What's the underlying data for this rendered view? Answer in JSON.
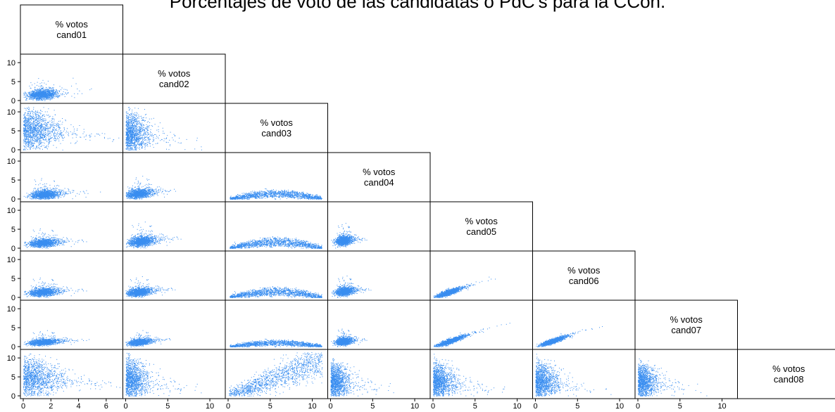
{
  "title": "Porcentajes de voto de las candidatas o PdC's para la CCon.",
  "point_color": "#3a8ef0",
  "chart_data": {
    "type": "scatter",
    "kind": "scatterplot-matrix (lower triangle)",
    "variables": [
      {
        "id": "cand01",
        "label_top": "% votos",
        "label_bottom": "cand01",
        "range": [
          0,
          7
        ],
        "ticks": [
          0,
          2,
          4,
          6
        ]
      },
      {
        "id": "cand02",
        "label_top": "% votos",
        "label_bottom": "cand02",
        "range": [
          0,
          11.5
        ],
        "ticks": [
          0,
          5,
          10
        ]
      },
      {
        "id": "cand03",
        "label_top": "% votos",
        "label_bottom": "cand03",
        "range": [
          0,
          11.5
        ],
        "ticks": [
          0,
          5,
          10
        ]
      },
      {
        "id": "cand04",
        "label_top": "% votos",
        "label_bottom": "cand04",
        "range": [
          0,
          11.5
        ],
        "ticks": [
          0,
          5,
          10
        ]
      },
      {
        "id": "cand05",
        "label_top": "% votos",
        "label_bottom": "cand05",
        "range": [
          0,
          11.5
        ],
        "ticks": [
          0,
          5,
          10
        ]
      },
      {
        "id": "cand06",
        "label_top": "% votos",
        "label_bottom": "cand06",
        "range": [
          0,
          11.5
        ],
        "ticks": [
          0,
          5,
          10
        ]
      },
      {
        "id": "cand07",
        "label_top": "% votos",
        "label_bottom": "cand07",
        "range": [
          0,
          11.5
        ],
        "ticks": [
          0,
          5,
          10
        ]
      },
      {
        "id": "cand08",
        "label_top": "% votos",
        "label_bottom": "cand08",
        "range": [
          0,
          11.5
        ],
        "ticks": [
          0,
          5,
          10
        ]
      }
    ],
    "y_axis_ticks": [
      0,
      5,
      10
    ],
    "x_tick_labels_bottom": [
      "0",
      "2",
      "4",
      "6",
      "0",
      "5",
      "10",
      "0",
      "5",
      "10",
      "0",
      "5",
      "10",
      "0",
      "5",
      "10",
      "0",
      "5",
      "10",
      "0",
      "5",
      "10"
    ],
    "panels": [
      {
        "x": "cand01",
        "y": "cand02",
        "shape": "cluster",
        "cx": 1.3,
        "cy": 1.6,
        "sx": 0.8,
        "sy": 1.0
      },
      {
        "x": "cand01",
        "y": "cand03",
        "shape": "fan",
        "cx": 0.6,
        "cy": 5.5,
        "sx": 1.2,
        "sy": 3.0
      },
      {
        "x": "cand02",
        "y": "cand03",
        "shape": "fan",
        "cx": 1.0,
        "cy": 4.5,
        "sx": 1.2,
        "sy": 3.0
      },
      {
        "x": "cand01",
        "y": "cand04",
        "shape": "cluster",
        "cx": 1.5,
        "cy": 1.2,
        "sx": 0.8,
        "sy": 0.9
      },
      {
        "x": "cand02",
        "y": "cand04",
        "shape": "cluster",
        "cx": 1.5,
        "cy": 1.4,
        "sx": 1.2,
        "sy": 0.9
      },
      {
        "x": "cand03",
        "y": "cand04",
        "shape": "arch",
        "cx": 4.5,
        "cy": 1.2,
        "sx": 2.6,
        "sy": 0.8
      },
      {
        "x": "cand01",
        "y": "cand05",
        "shape": "cluster",
        "cx": 1.4,
        "cy": 1.4,
        "sx": 0.8,
        "sy": 0.8
      },
      {
        "x": "cand02",
        "y": "cand05",
        "shape": "cluster",
        "cx": 1.8,
        "cy": 1.8,
        "sx": 1.2,
        "sy": 1.0
      },
      {
        "x": "cand03",
        "y": "cand05",
        "shape": "arch",
        "cx": 4.5,
        "cy": 1.4,
        "sx": 2.6,
        "sy": 0.8
      },
      {
        "x": "cand04",
        "y": "cand05",
        "shape": "cluster",
        "cx": 1.5,
        "cy": 2.0,
        "sx": 0.7,
        "sy": 0.9
      },
      {
        "x": "cand01",
        "y": "cand06",
        "shape": "cluster",
        "cx": 1.4,
        "cy": 1.4,
        "sx": 0.8,
        "sy": 0.8
      },
      {
        "x": "cand02",
        "y": "cand06",
        "shape": "cluster",
        "cx": 1.5,
        "cy": 1.4,
        "sx": 1.1,
        "sy": 0.8
      },
      {
        "x": "cand03",
        "y": "cand06",
        "shape": "arch",
        "cx": 4.5,
        "cy": 1.3,
        "sx": 2.6,
        "sy": 0.8
      },
      {
        "x": "cand04",
        "y": "cand06",
        "shape": "cluster",
        "cx": 1.6,
        "cy": 1.6,
        "sx": 0.8,
        "sy": 0.8
      },
      {
        "x": "cand05",
        "y": "cand06",
        "shape": "diag",
        "cx": 1.8,
        "cy": 1.6,
        "sx": 1.0,
        "sy": 0.7
      },
      {
        "x": "cand01",
        "y": "cand07",
        "shape": "cluster",
        "cx": 1.4,
        "cy": 1.2,
        "sx": 0.8,
        "sy": 0.6
      },
      {
        "x": "cand02",
        "y": "cand07",
        "shape": "cluster",
        "cx": 1.6,
        "cy": 1.2,
        "sx": 1.0,
        "sy": 0.6
      },
      {
        "x": "cand03",
        "y": "cand07",
        "shape": "arch",
        "cx": 4.5,
        "cy": 0.9,
        "sx": 2.6,
        "sy": 0.6
      },
      {
        "x": "cand04",
        "y": "cand07",
        "shape": "cluster",
        "cx": 1.5,
        "cy": 1.4,
        "sx": 0.7,
        "sy": 0.7
      },
      {
        "x": "cand05",
        "y": "cand07",
        "shape": "diag",
        "cx": 2.0,
        "cy": 1.4,
        "sx": 1.2,
        "sy": 0.6
      },
      {
        "x": "cand06",
        "y": "cand07",
        "shape": "diag",
        "cx": 2.0,
        "cy": 1.4,
        "sx": 1.0,
        "sy": 0.6
      },
      {
        "x": "cand01",
        "y": "cand08",
        "shape": "fan",
        "cx": 0.7,
        "cy": 5.0,
        "sx": 1.3,
        "sy": 3.0
      },
      {
        "x": "cand02",
        "y": "cand08",
        "shape": "fan",
        "cx": 1.0,
        "cy": 4.5,
        "sx": 1.2,
        "sy": 3.0
      },
      {
        "x": "cand03",
        "y": "cand08",
        "shape": "rising",
        "cx": 5.0,
        "cy": 4.0,
        "sx": 3.0,
        "sy": 1.4
      },
      {
        "x": "cand04",
        "y": "cand08",
        "shape": "fan",
        "cx": 0.9,
        "cy": 4.0,
        "sx": 1.0,
        "sy": 2.6
      },
      {
        "x": "cand05",
        "y": "cand08",
        "shape": "fan",
        "cx": 1.2,
        "cy": 4.0,
        "sx": 1.2,
        "sy": 2.6
      },
      {
        "x": "cand06",
        "y": "cand08",
        "shape": "fan",
        "cx": 1.2,
        "cy": 4.0,
        "sx": 1.2,
        "sy": 2.6
      },
      {
        "x": "cand07",
        "y": "cand08",
        "shape": "fan",
        "cx": 1.0,
        "cy": 4.0,
        "sx": 1.0,
        "sy": 2.4
      }
    ],
    "xlabel": "",
    "ylabel": "",
    "grid": false,
    "legend": "none"
  }
}
